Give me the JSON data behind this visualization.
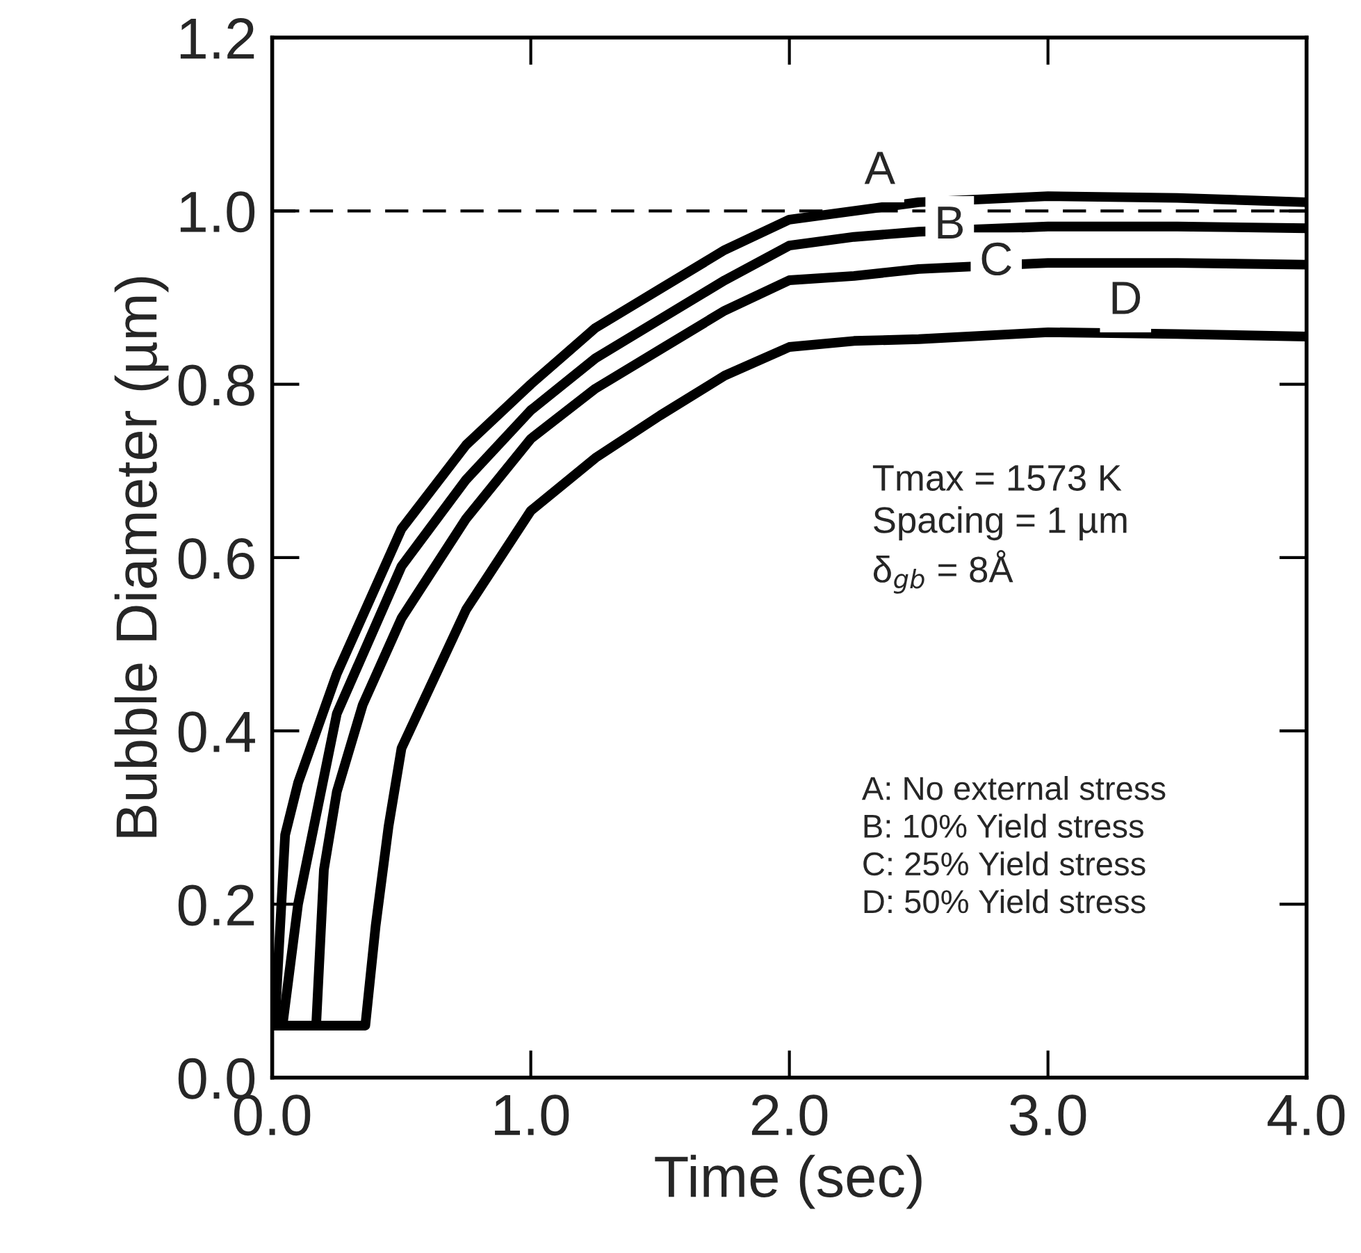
{
  "chart_data": {
    "type": "line",
    "xlabel": "Time (sec)",
    "ylabel": "Bubble Diameter (µm)",
    "series": [
      {
        "color": "#000000",
        "x": [
          0.0,
          0.01,
          0.05,
          0.1,
          0.25,
          0.5,
          0.75,
          1.0,
          1.25,
          1.5,
          1.75,
          2.0,
          2.25,
          2.5,
          3.0,
          3.5,
          4.0
        ],
        "values": [
          0.06,
          0.06,
          0.28,
          0.34,
          0.466,
          0.633,
          0.73,
          0.8,
          0.865,
          0.91,
          0.955,
          0.99,
          1.0,
          1.01,
          1.017,
          1.015,
          1.01
        ]
      },
      {
        "color": "#000000",
        "x": [
          0.0,
          0.04,
          0.1,
          0.25,
          0.5,
          0.75,
          1.0,
          1.25,
          1.5,
          1.75,
          2.0,
          2.25,
          2.5,
          3.0,
          3.5,
          4.0
        ],
        "values": [
          0.06,
          0.06,
          0.2,
          0.42,
          0.59,
          0.69,
          0.77,
          0.83,
          0.875,
          0.92,
          0.96,
          0.97,
          0.976,
          0.982,
          0.982,
          0.98
        ]
      },
      {
        "color": "#000000",
        "x": [
          0.0,
          0.17,
          0.2,
          0.25,
          0.35,
          0.5,
          0.75,
          1.0,
          1.25,
          1.5,
          1.75,
          2.0,
          2.25,
          2.5,
          3.0,
          3.5,
          4.0
        ],
        "values": [
          0.06,
          0.06,
          0.24,
          0.33,
          0.43,
          0.53,
          0.645,
          0.737,
          0.795,
          0.84,
          0.885,
          0.92,
          0.925,
          0.933,
          0.94,
          0.94,
          0.938
        ]
      },
      {
        "color": "#000000",
        "x": [
          0.0,
          0.36,
          0.4,
          0.45,
          0.5,
          0.75,
          1.0,
          1.25,
          1.5,
          1.75,
          2.0,
          2.25,
          2.5,
          3.0,
          3.5,
          4.0
        ],
        "values": [
          0.06,
          0.06,
          0.175,
          0.29,
          0.38,
          0.54,
          0.654,
          0.715,
          0.764,
          0.81,
          0.843,
          0.85,
          0.852,
          0.86,
          0.858,
          0.855
        ]
      }
    ],
    "xlim": [
      0,
      4
    ],
    "ylim": [
      0,
      1.2
    ],
    "xticks": [
      {
        "value": 0,
        "label": "0.0"
      },
      {
        "value": 1,
        "label": "1.0"
      },
      {
        "value": 2,
        "label": "2.0"
      },
      {
        "value": 3,
        "label": "3.0"
      },
      {
        "value": 4,
        "label": "4.0"
      }
    ],
    "yticks": [
      {
        "value": 0,
        "label": "0.0"
      },
      {
        "value": 0.2,
        "label": "0.2"
      },
      {
        "value": 0.4,
        "label": "0.4"
      },
      {
        "value": 0.6,
        "label": "0.6"
      },
      {
        "value": 0.8,
        "label": "0.8"
      },
      {
        "value": 1.0,
        "label": "1.0"
      },
      {
        "value": 1.2,
        "label": "1.2"
      }
    ],
    "ref_lines": [
      {
        "axis": "y",
        "value": 1.0,
        "line_style": "dashed",
        "color": "#000000"
      }
    ],
    "grid": false,
    "legend": false,
    "line_style": "solid",
    "marker": "none",
    "annotations": [
      {
        "text": "A",
        "x": 2.35,
        "y": 1.045
      },
      {
        "text": "B",
        "x": 2.62,
        "y": 0.982
      },
      {
        "text": "C",
        "x": 2.8,
        "y": 0.94
      },
      {
        "text": "D",
        "x": 3.3,
        "y": 0.895
      },
      "Tmax = 1573 K\nSpacing = 1 µm\nδ$_{gb}$ = 8Å",
      "A: No external stress\nB: 10% Yield stress\nC: 25% Yield stress\nD: 50% Yield stress"
    ]
  }
}
